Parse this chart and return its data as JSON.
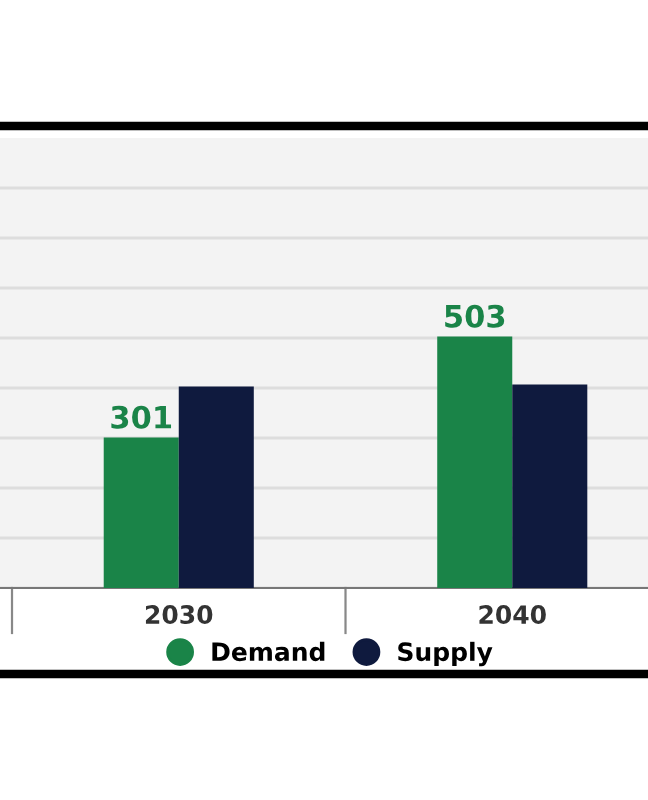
{
  "chart_data": {
    "type": "bar",
    "categories": [
      "2030",
      "2040"
    ],
    "series": [
      {
        "name": "Demand",
        "color": "#1a8448",
        "values": [
          301,
          503
        ],
        "value_labels": [
          "301",
          "503"
        ]
      },
      {
        "name": "Supply",
        "color": "#0f1a3e",
        "values": [
          403,
          407
        ]
      }
    ],
    "ylim": [
      0,
      900
    ],
    "yticks": [
      {
        "value": 0,
        "label": null
      },
      {
        "value": 100,
        "label": null
      },
      {
        "value": 200,
        "label": null
      },
      {
        "value": 300,
        "label": null
      },
      {
        "value": 400,
        "label": null
      },
      {
        "value": 500,
        "label": null
      },
      {
        "value": 600,
        "label": null
      },
      {
        "value": 700,
        "label": null
      },
      {
        "value": 800,
        "label": null
      }
    ],
    "tick_labels": "x",
    "grid": "y",
    "legend": "bottom"
  }
}
